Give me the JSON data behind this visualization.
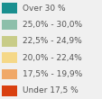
{
  "legend_items": [
    {
      "label": "Over 30 %",
      "color": "#1a8f8f"
    },
    {
      "label": "25,0% - 30,0%",
      "color": "#8dbfaa"
    },
    {
      "label": "22,5% - 24,9%",
      "color": "#c8cc88"
    },
    {
      "label": "20,0% - 22,4%",
      "color": "#f5d888"
    },
    {
      "label": "17,5% - 19,9%",
      "color": "#f0a868"
    },
    {
      "label": "Under 17,5 %",
      "color": "#d94010"
    }
  ],
  "background_color": "#f0f0f0",
  "fontsize": 6.5,
  "text_color": "#555555"
}
